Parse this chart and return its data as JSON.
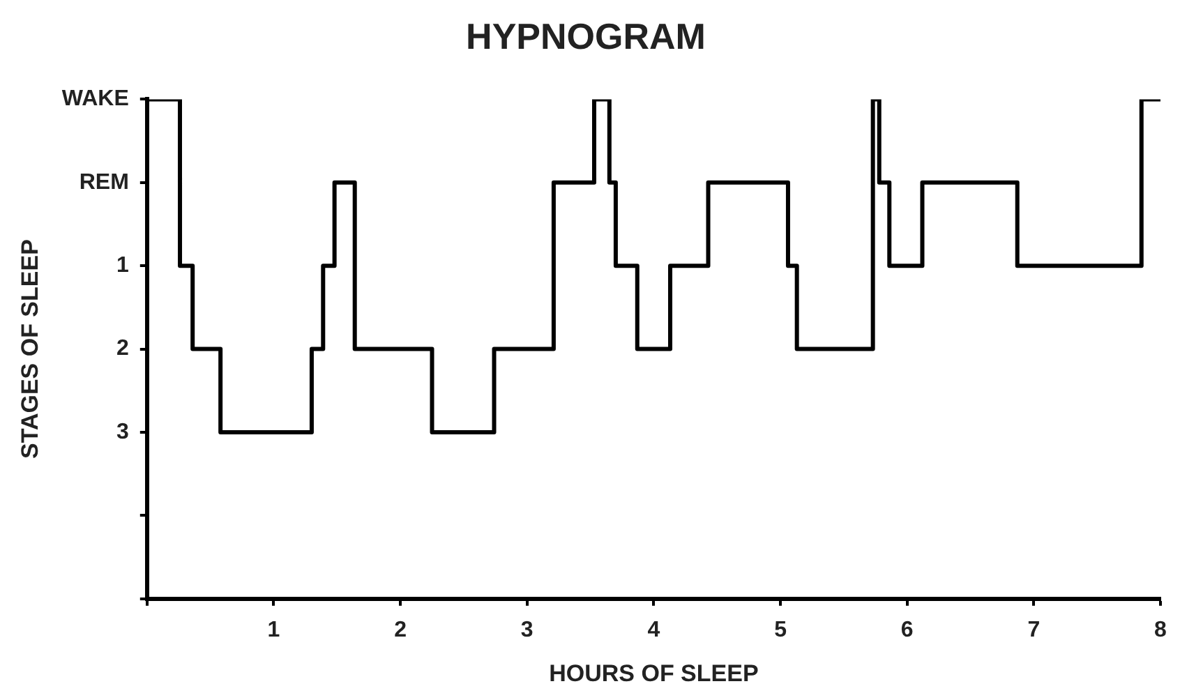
{
  "chart_data": {
    "type": "step",
    "title": "HYPNOGRAM",
    "xlabel": "HOURS OF SLEEP",
    "ylabel": "STAGES OF SLEEP",
    "x": [
      0,
      0.26,
      0.36,
      0.58,
      1.3,
      1.39,
      1.48,
      1.64,
      2.25,
      2.74,
      3.21,
      3.53,
      3.65,
      3.7,
      3.87,
      4.13,
      4.43,
      5.06,
      5.13,
      5.73,
      5.78,
      5.86,
      6.12,
      6.87,
      7.85,
      8
    ],
    "values": [
      -1,
      1,
      2,
      3,
      2,
      1,
      0,
      2,
      3,
      2,
      0,
      -1,
      0,
      1,
      2,
      1,
      0,
      1,
      2,
      -1,
      0,
      1,
      0,
      1,
      -1,
      -1
    ],
    "color": "#000000",
    "line_style": "solid",
    "marker": "none",
    "grid": false,
    "legend": false,
    "xlim": [
      0,
      8
    ],
    "xticks": [
      {
        "value": 0,
        "label": null
      },
      1,
      2,
      3,
      4,
      5,
      6,
      7,
      8
    ],
    "ylim": [
      5,
      -1
    ],
    "yticks": [
      {
        "value": 5,
        "label": null
      },
      {
        "value": 4,
        "label": null
      },
      3,
      2,
      1,
      {
        "value": 0,
        "label": "REM"
      },
      {
        "value": -1,
        "label": "WAKE"
      }
    ]
  }
}
